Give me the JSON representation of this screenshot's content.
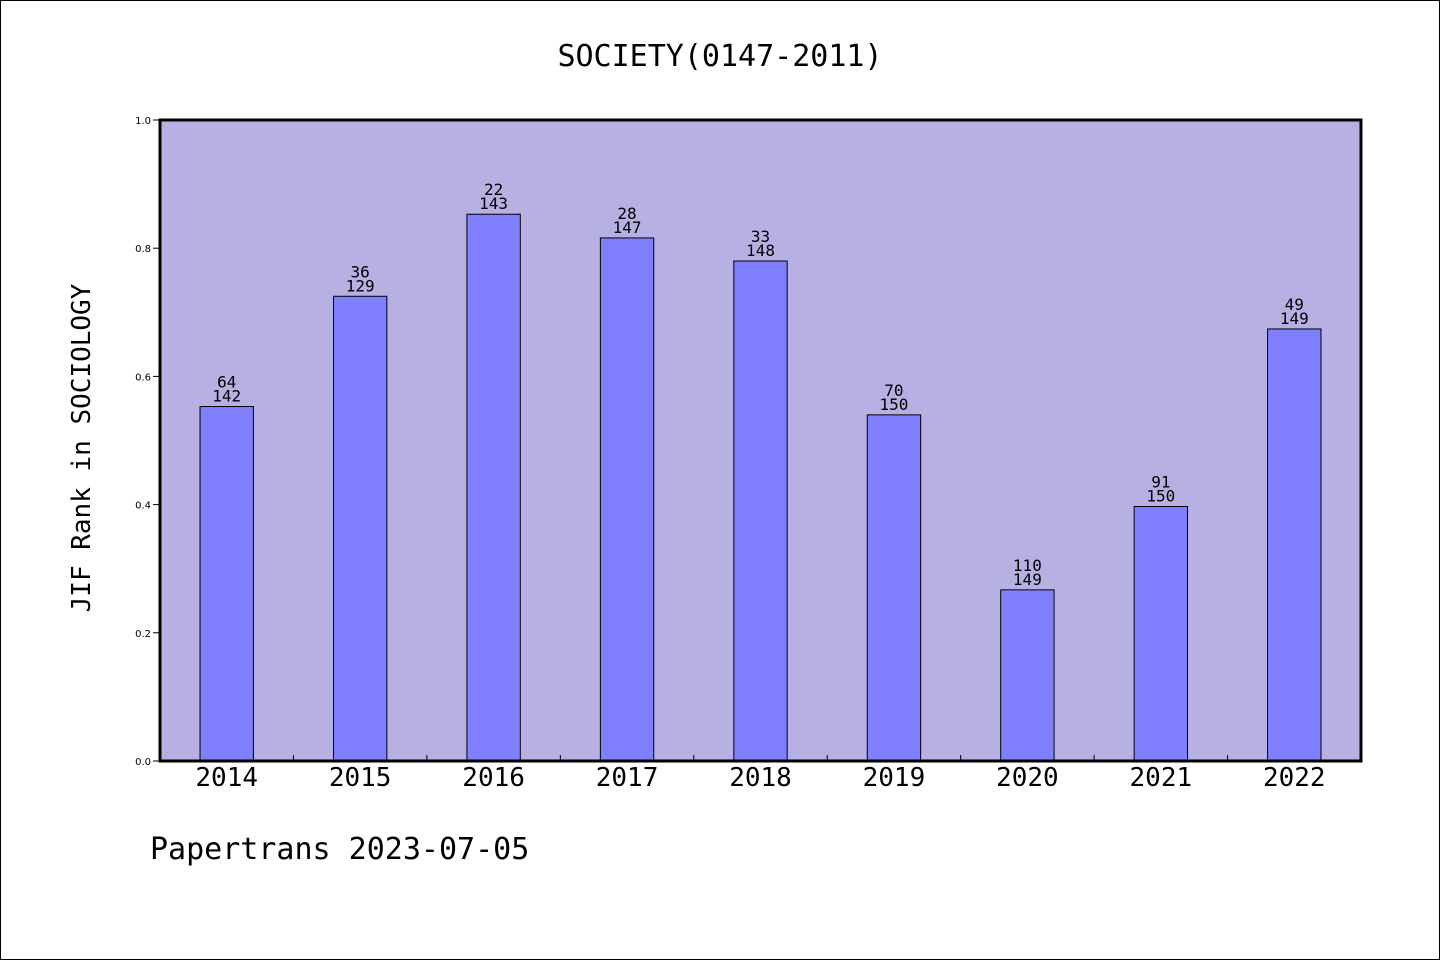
{
  "colors": {
    "plot_background": "#b6b0e3",
    "bar_fill": "#8080ff",
    "bar_stroke": "#000000",
    "axis": "#000000"
  },
  "chart_data": {
    "type": "bar",
    "title": "SOCIETY(0147-2011)",
    "ylabel": "JIF Rank in SOCIOLOGY",
    "xlabel": "",
    "ylim": [
      0,
      1.0
    ],
    "yticks": [
      "0.0",
      "0.2",
      "0.4",
      "0.6",
      "0.8",
      "1.0"
    ],
    "categories": [
      "2014",
      "2015",
      "2016",
      "2017",
      "2018",
      "2019",
      "2020",
      "2021",
      "2022"
    ],
    "values": [
      0.553,
      0.725,
      0.853,
      0.816,
      0.78,
      0.54,
      0.267,
      0.397,
      0.674
    ],
    "ranks": [
      "64",
      "36",
      "22",
      "28",
      "33",
      "70",
      "110",
      "91",
      "49"
    ],
    "totals": [
      "142",
      "129",
      "143",
      "147",
      "148",
      "150",
      "149",
      "150",
      "149"
    ],
    "grid": false,
    "legend": "none"
  },
  "footer": {
    "note": "Papertrans 2023-07-05"
  }
}
